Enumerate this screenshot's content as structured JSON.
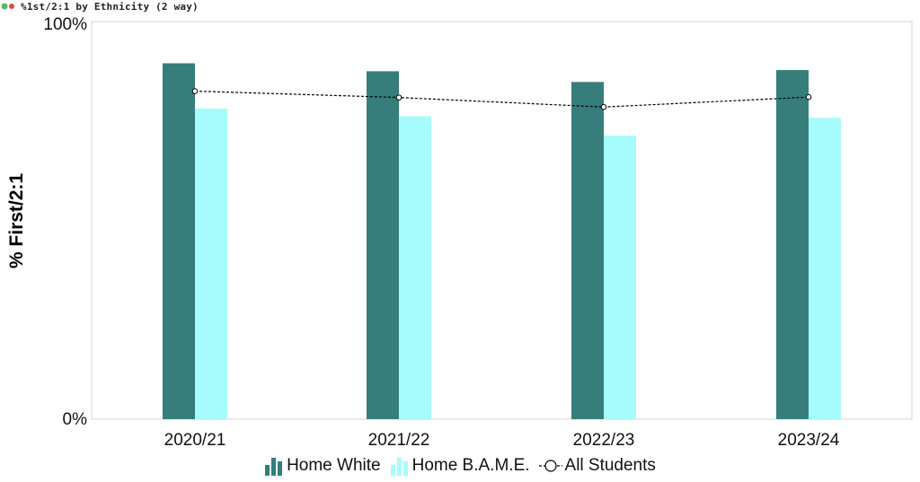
{
  "header": {
    "title": "%1st/2:1 by Ethnicity (2 way)",
    "icon_colors": [
      "#5cb85c",
      "#e04a3a"
    ]
  },
  "colors": {
    "home_white": "#367d7c",
    "home_bame": "#a6fbfc",
    "all_students": "#000000"
  },
  "chart_data": {
    "type": "bar",
    "categories": [
      "2020/21",
      "2021/22",
      "2022/23",
      "2023/24"
    ],
    "series": [
      {
        "name": "Home White",
        "type": "bar",
        "values": [
          89.5,
          87.5,
          84.8,
          87.8
        ]
      },
      {
        "name": "Home B.A.M.E.",
        "type": "bar",
        "values": [
          78.1,
          76.2,
          71.3,
          75.8
        ]
      },
      {
        "name": "All Students",
        "type": "line",
        "values": [
          82.5,
          80.9,
          78.5,
          81.0
        ]
      }
    ],
    "title": "",
    "xlabel": "",
    "ylabel": "% First/2:1",
    "ylim": [
      0,
      100
    ],
    "ytick_labels": [
      "0%",
      "100%"
    ],
    "grid": false,
    "legend_position": "bottom"
  }
}
